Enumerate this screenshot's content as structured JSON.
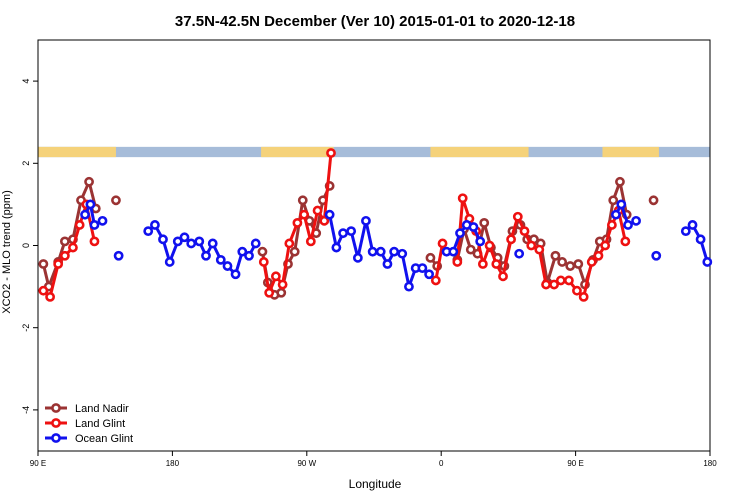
{
  "chart_data": {
    "type": "line",
    "title": "37.5N-42.5N December (Ver 10)   2015-01-01 to 2020-12-18",
    "xlabel": "Longitude",
    "ylabel": "XCO2 - MLO trend (ppm)",
    "xlim": [
      0,
      500
    ],
    "ylim": [
      -5,
      5
    ],
    "x_ticks": [
      {
        "value": 0,
        "label": "90 E"
      },
      {
        "value": 100,
        "label": "180"
      },
      {
        "value": 200,
        "label": "90 W"
      },
      {
        "value": 300,
        "label": "0"
      },
      {
        "value": 400,
        "label": "90 E"
      },
      {
        "value": 500,
        "label": "180"
      }
    ],
    "y_ticks": [
      {
        "value": -4,
        "label": "-4"
      },
      {
        "value": -2,
        "label": "-2"
      },
      {
        "value": 0,
        "label": "0"
      },
      {
        "value": 2,
        "label": "2"
      },
      {
        "value": 4,
        "label": "4"
      }
    ],
    "legend_position": "bottom-left",
    "land_strip": {
      "y_range": [
        2.15,
        2.4
      ],
      "ocean_color": "#a6bcd9",
      "land_color": "#f5d27a",
      "land_segments": [
        [
          0,
          58
        ],
        [
          166,
          220
        ],
        [
          292,
          365
        ],
        [
          420,
          462
        ]
      ]
    },
    "series": [
      {
        "name": "Land Nadir",
        "color": "#9b3333",
        "points": [
          {
            "x": 4,
            "y": -0.45
          },
          {
            "x": 8,
            "y": -1.0
          },
          {
            "x": 15,
            "y": -0.4
          },
          {
            "x": 20,
            "y": 0.1
          },
          {
            "x": 26,
            "y": 0.15
          },
          {
            "x": 32,
            "y": 1.1
          },
          {
            "x": 38,
            "y": 1.55
          },
          {
            "x": 43,
            "y": 0.9
          },
          {
            "x": null,
            "y": null
          },
          {
            "x": 58,
            "y": 1.1
          },
          {
            "x": null,
            "y": null
          },
          {
            "x": 167,
            "y": -0.15
          },
          {
            "x": 171,
            "y": -0.9
          },
          {
            "x": 176,
            "y": -1.2
          },
          {
            "x": 181,
            "y": -1.15
          },
          {
            "x": 186,
            "y": -0.45
          },
          {
            "x": 191,
            "y": -0.15
          },
          {
            "x": 197,
            "y": 1.1
          },
          {
            "x": 202,
            "y": 0.6
          },
          {
            "x": 207,
            "y": 0.3
          },
          {
            "x": 212,
            "y": 1.1
          },
          {
            "x": 217,
            "y": 1.45
          },
          {
            "x": null,
            "y": null
          },
          {
            "x": 292,
            "y": -0.3
          },
          {
            "x": 297,
            "y": -0.5
          },
          {
            "x": null,
            "y": null
          },
          {
            "x": 312,
            "y": -0.35
          },
          {
            "x": 317,
            "y": 0.4
          },
          {
            "x": 322,
            "y": -0.1
          },
          {
            "x": 327,
            "y": -0.2
          },
          {
            "x": 332,
            "y": 0.55
          },
          {
            "x": 337,
            "y": -0.05
          },
          {
            "x": 342,
            "y": -0.3
          },
          {
            "x": 347,
            "y": -0.5
          },
          {
            "x": 353,
            "y": 0.35
          },
          {
            "x": 359,
            "y": 0.5
          },
          {
            "x": 364,
            "y": 0.15
          },
          {
            "x": 369,
            "y": 0.15
          },
          {
            "x": 374,
            "y": 0.05
          },
          {
            "x": 379,
            "y": -0.9
          },
          {
            "x": 385,
            "y": -0.25
          },
          {
            "x": 390,
            "y": -0.4
          },
          {
            "x": 396,
            "y": -0.5
          },
          {
            "x": 402,
            "y": -0.45
          },
          {
            "x": 407,
            "y": -0.95
          },
          {
            "x": 413,
            "y": -0.35
          },
          {
            "x": 418,
            "y": 0.1
          },
          {
            "x": 423,
            "y": 0.15
          },
          {
            "x": 428,
            "y": 1.1
          },
          {
            "x": 433,
            "y": 1.55
          },
          {
            "x": 438,
            "y": 0.75
          },
          {
            "x": null,
            "y": null
          },
          {
            "x": 458,
            "y": 1.1
          }
        ]
      },
      {
        "name": "Land Glint",
        "color": "#ee1111",
        "points": [
          {
            "x": 4,
            "y": -1.1
          },
          {
            "x": 9,
            "y": -1.25
          },
          {
            "x": 15,
            "y": -0.45
          },
          {
            "x": 20,
            "y": -0.25
          },
          {
            "x": 26,
            "y": -0.05
          },
          {
            "x": 31,
            "y": 0.5
          },
          {
            "x": 36,
            "y": 1.0
          },
          {
            "x": 42,
            "y": 0.1
          },
          {
            "x": null,
            "y": null
          },
          {
            "x": 168,
            "y": -0.4
          },
          {
            "x": 172,
            "y": -1.15
          },
          {
            "x": 177,
            "y": -0.75
          },
          {
            "x": 182,
            "y": -0.95
          },
          {
            "x": 187,
            "y": 0.05
          },
          {
            "x": 193,
            "y": 0.55
          },
          {
            "x": 198,
            "y": 0.75
          },
          {
            "x": 203,
            "y": 0.1
          },
          {
            "x": 208,
            "y": 0.85
          },
          {
            "x": 213,
            "y": 0.6
          },
          {
            "x": 218,
            "y": 2.25
          },
          {
            "x": null,
            "y": null
          },
          {
            "x": 296,
            "y": -0.85
          },
          {
            "x": 301,
            "y": 0.05
          },
          {
            "x": null,
            "y": null
          },
          {
            "x": 312,
            "y": -0.4
          },
          {
            "x": 316,
            "y": 1.15
          },
          {
            "x": 321,
            "y": 0.65
          },
          {
            "x": 326,
            "y": 0.35
          },
          {
            "x": 331,
            "y": -0.45
          },
          {
            "x": 336,
            "y": 0.0
          },
          {
            "x": 341,
            "y": -0.45
          },
          {
            "x": 346,
            "y": -0.75
          },
          {
            "x": 352,
            "y": 0.15
          },
          {
            "x": 357,
            "y": 0.7
          },
          {
            "x": 362,
            "y": 0.35
          },
          {
            "x": 367,
            "y": 0.0
          },
          {
            "x": 373,
            "y": -0.1
          },
          {
            "x": 378,
            "y": -0.95
          },
          {
            "x": 384,
            "y": -0.95
          },
          {
            "x": 389,
            "y": -0.85
          },
          {
            "x": 395,
            "y": -0.85
          },
          {
            "x": 401,
            "y": -1.1
          },
          {
            "x": 406,
            "y": -1.25
          },
          {
            "x": 412,
            "y": -0.4
          },
          {
            "x": 417,
            "y": -0.25
          },
          {
            "x": 422,
            "y": 0.0
          },
          {
            "x": 427,
            "y": 0.5
          },
          {
            "x": 432,
            "y": 0.85
          },
          {
            "x": 437,
            "y": 0.1
          }
        ]
      },
      {
        "name": "Ocean Glint",
        "color": "#1111ee",
        "points": [
          {
            "x": 35,
            "y": 0.75
          },
          {
            "x": 39,
            "y": 1.0
          },
          {
            "x": 42,
            "y": 0.5
          },
          {
            "x": 48,
            "y": 0.6
          },
          {
            "x": null,
            "y": null
          },
          {
            "x": 60,
            "y": -0.25
          },
          {
            "x": null,
            "y": null
          },
          {
            "x": 82,
            "y": 0.35
          },
          {
            "x": 87,
            "y": 0.5
          },
          {
            "x": 93,
            "y": 0.15
          },
          {
            "x": 98,
            "y": -0.4
          },
          {
            "x": 104,
            "y": 0.1
          },
          {
            "x": 109,
            "y": 0.2
          },
          {
            "x": 114,
            "y": 0.05
          },
          {
            "x": 120,
            "y": 0.1
          },
          {
            "x": 125,
            "y": -0.25
          },
          {
            "x": 130,
            "y": 0.05
          },
          {
            "x": 136,
            "y": -0.35
          },
          {
            "x": 141,
            "y": -0.5
          },
          {
            "x": 147,
            "y": -0.7
          },
          {
            "x": 152,
            "y": -0.15
          },
          {
            "x": 157,
            "y": -0.25
          },
          {
            "x": 162,
            "y": 0.05
          },
          {
            "x": null,
            "y": null
          },
          {
            "x": 217,
            "y": 0.75
          },
          {
            "x": 222,
            "y": -0.05
          },
          {
            "x": 227,
            "y": 0.3
          },
          {
            "x": 233,
            "y": 0.35
          },
          {
            "x": 238,
            "y": -0.3
          },
          {
            "x": 244,
            "y": 0.6
          },
          {
            "x": 249,
            "y": -0.15
          },
          {
            "x": 255,
            "y": -0.15
          },
          {
            "x": 260,
            "y": -0.45
          },
          {
            "x": 265,
            "y": -0.15
          },
          {
            "x": 271,
            "y": -0.2
          },
          {
            "x": 276,
            "y": -1.0
          },
          {
            "x": 281,
            "y": -0.55
          },
          {
            "x": 286,
            "y": -0.55
          },
          {
            "x": 291,
            "y": -0.7
          },
          {
            "x": null,
            "y": null
          },
          {
            "x": 304,
            "y": -0.15
          },
          {
            "x": 309,
            "y": -0.15
          },
          {
            "x": 314,
            "y": 0.3
          },
          {
            "x": 319,
            "y": 0.5
          },
          {
            "x": 324,
            "y": 0.45
          },
          {
            "x": 329,
            "y": 0.1
          },
          {
            "x": null,
            "y": null
          },
          {
            "x": 358,
            "y": -0.2
          },
          {
            "x": null,
            "y": null
          },
          {
            "x": 430,
            "y": 0.75
          },
          {
            "x": 434,
            "y": 1.0
          },
          {
            "x": 439,
            "y": 0.5
          },
          {
            "x": 445,
            "y": 0.6
          },
          {
            "x": null,
            "y": null
          },
          {
            "x": 460,
            "y": -0.25
          },
          {
            "x": null,
            "y": null
          },
          {
            "x": 482,
            "y": 0.35
          },
          {
            "x": 487,
            "y": 0.5
          },
          {
            "x": 493,
            "y": 0.15
          },
          {
            "x": 498,
            "y": -0.4
          }
        ]
      }
    ]
  }
}
